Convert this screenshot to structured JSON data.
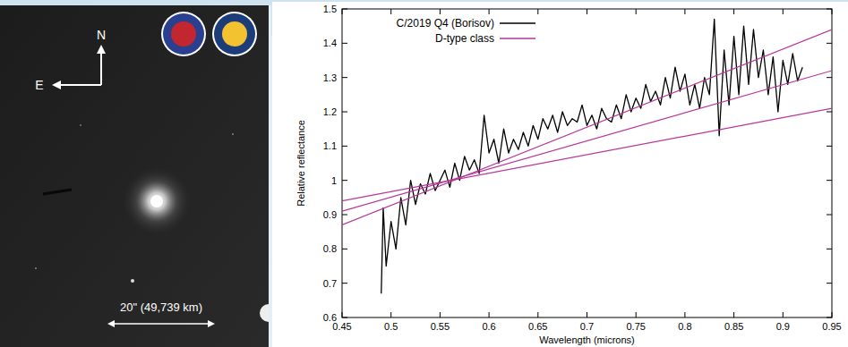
{
  "image": {
    "north": "N",
    "east": "E",
    "scale_bar": "20\" (49,739 km)"
  },
  "chart_data": {
    "type": "line",
    "xlabel": "Wavelength (microns)",
    "ylabel": "Relative reflectance",
    "xlim": [
      0.45,
      0.95
    ],
    "ylim": [
      0.6,
      1.5
    ],
    "xticks": [
      0.45,
      0.5,
      0.55,
      0.6,
      0.65,
      0.7,
      0.75,
      0.8,
      0.85,
      0.9,
      0.95
    ],
    "yticks": [
      0.6,
      0.7,
      0.8,
      0.9,
      1,
      1.1,
      1.2,
      1.3,
      1.4,
      1.5
    ],
    "grid": false,
    "legend": "upper left",
    "series": [
      {
        "name": "C/2019 Q4 (Borisov)",
        "color": "#000000",
        "x": [
          0.49,
          0.492,
          0.495,
          0.5,
          0.505,
          0.51,
          0.515,
          0.52,
          0.525,
          0.53,
          0.535,
          0.54,
          0.545,
          0.55,
          0.555,
          0.56,
          0.565,
          0.57,
          0.575,
          0.58,
          0.585,
          0.59,
          0.595,
          0.6,
          0.605,
          0.61,
          0.615,
          0.62,
          0.625,
          0.63,
          0.635,
          0.64,
          0.645,
          0.65,
          0.655,
          0.66,
          0.665,
          0.67,
          0.675,
          0.68,
          0.685,
          0.69,
          0.695,
          0.7,
          0.705,
          0.71,
          0.715,
          0.72,
          0.725,
          0.73,
          0.735,
          0.74,
          0.745,
          0.75,
          0.755,
          0.76,
          0.765,
          0.77,
          0.775,
          0.78,
          0.785,
          0.79,
          0.795,
          0.8,
          0.805,
          0.81,
          0.815,
          0.82,
          0.825,
          0.83,
          0.835,
          0.84,
          0.845,
          0.85,
          0.855,
          0.86,
          0.865,
          0.87,
          0.875,
          0.88,
          0.885,
          0.89,
          0.895,
          0.9,
          0.905,
          0.91,
          0.915,
          0.92
        ],
        "values": [
          0.67,
          0.92,
          0.75,
          0.88,
          0.8,
          0.95,
          0.87,
          1.0,
          0.93,
          0.99,
          0.96,
          1.02,
          0.97,
          1.0,
          1.03,
          0.98,
          1.05,
          1.0,
          1.07,
          1.03,
          1.06,
          1.02,
          1.19,
          1.08,
          1.12,
          1.05,
          1.15,
          1.08,
          1.12,
          1.09,
          1.14,
          1.1,
          1.16,
          1.12,
          1.18,
          1.15,
          1.19,
          1.14,
          1.2,
          1.16,
          1.18,
          1.17,
          1.22,
          1.16,
          1.19,
          1.15,
          1.21,
          1.18,
          1.17,
          1.22,
          1.18,
          1.25,
          1.2,
          1.24,
          1.21,
          1.28,
          1.23,
          1.26,
          1.22,
          1.3,
          1.24,
          1.33,
          1.26,
          1.31,
          1.22,
          1.28,
          1.21,
          1.3,
          1.25,
          1.47,
          1.13,
          1.38,
          1.22,
          1.42,
          1.25,
          1.45,
          1.28,
          1.44,
          1.3,
          1.38,
          1.25,
          1.36,
          1.2,
          1.35,
          1.28,
          1.37,
          1.29,
          1.33
        ]
      },
      {
        "name": "D-type class",
        "color": "#b8359a",
        "x": [
          0.45,
          0.95
        ],
        "values": [
          0.87,
          1.44
        ]
      },
      {
        "name": "D-type class",
        "color": "#b8359a",
        "x": [
          0.45,
          0.95
        ],
        "values": [
          0.91,
          1.32
        ]
      },
      {
        "name": "D-type class",
        "color": "#b8359a",
        "x": [
          0.45,
          0.95
        ],
        "values": [
          0.94,
          1.21
        ]
      }
    ]
  }
}
